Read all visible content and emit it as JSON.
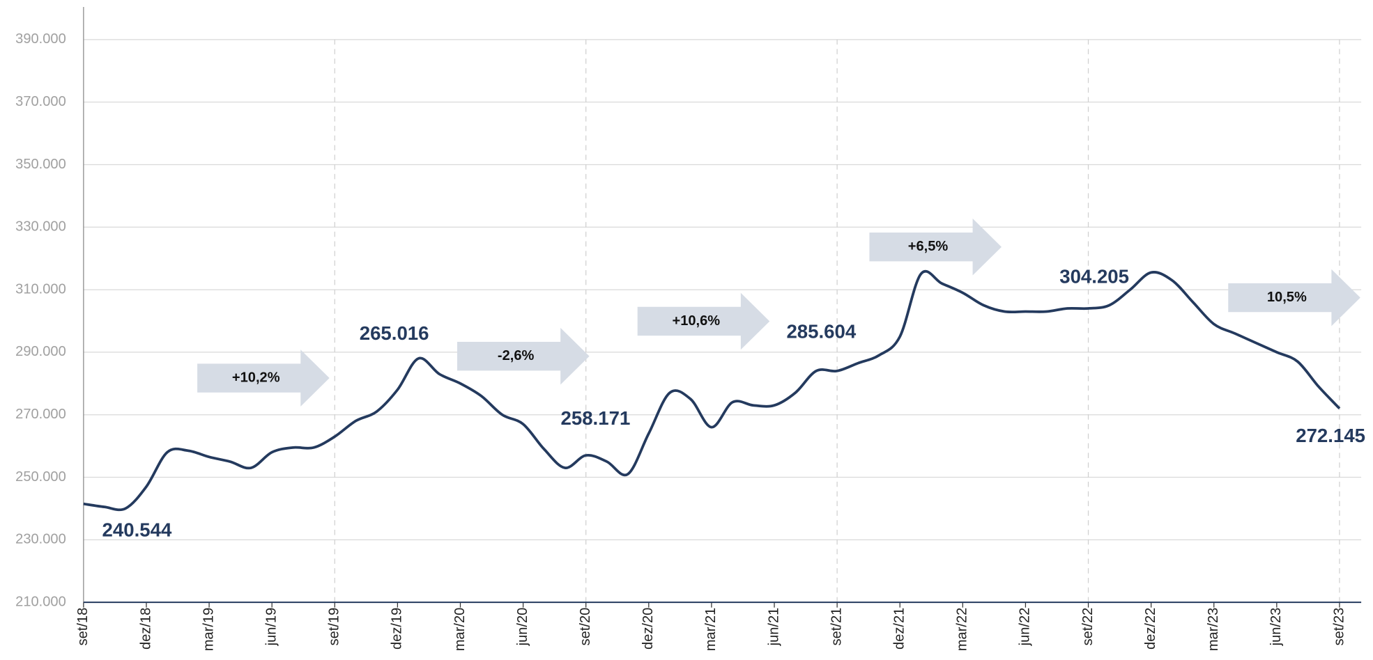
{
  "chart_data": {
    "type": "line",
    "categories": [
      "set/18",
      null,
      null,
      "dez/18",
      null,
      null,
      "mar/19",
      null,
      null,
      "jun/19",
      null,
      null,
      "set/19",
      null,
      null,
      "dez/19",
      null,
      null,
      "mar/20",
      null,
      null,
      "jun/20",
      null,
      null,
      "set/20",
      null,
      null,
      "dez/20",
      null,
      null,
      "mar/21",
      null,
      null,
      "jun/21",
      null,
      null,
      "set/21",
      null,
      null,
      "dez/21",
      null,
      null,
      "mar/22",
      null,
      null,
      "jun/22",
      null,
      null,
      "set/22",
      null,
      null,
      "dez/22",
      null,
      null,
      "mar/23",
      null,
      null,
      "jun/23",
      null,
      null,
      "set/23"
    ],
    "series": [
      {
        "color": "#243a5e",
        "values": [
          241500,
          240500,
          240000,
          247000,
          258000,
          258500,
          256500,
          255000,
          253000,
          258000,
          259500,
          259500,
          263000,
          268000,
          271000,
          278000,
          288000,
          283000,
          280000,
          276000,
          270000,
          267000,
          259000,
          253000,
          257000,
          255000,
          251000,
          264000,
          277000,
          275000,
          266000,
          274000,
          273000,
          273000,
          277000,
          284000,
          284000,
          286500,
          289000,
          295000,
          315000,
          312000,
          309000,
          305000,
          303000,
          303000,
          303000,
          304000,
          304000,
          305000,
          310000,
          315500,
          313000,
          306000,
          299000,
          296000,
          293000,
          290000,
          287000,
          279000,
          272000
        ]
      }
    ],
    "ylim": [
      210000,
      400000
    ],
    "yticks": [
      {
        "value": 210000,
        "label": "210.000"
      },
      {
        "value": 230000,
        "label": "230.000"
      },
      {
        "value": 250000,
        "label": "250.000"
      },
      {
        "value": 270000,
        "label": "270.000"
      },
      {
        "value": 290000,
        "label": "290.000"
      },
      {
        "value": 310000,
        "label": "310.000"
      },
      {
        "value": 330000,
        "label": "330.000"
      },
      {
        "value": 350000,
        "label": "350.000"
      },
      {
        "value": 370000,
        "label": "370.000"
      },
      {
        "value": 390000,
        "label": "390.000"
      }
    ],
    "grid": true,
    "annotations": [
      "240.544",
      "265.016",
      "258.171",
      "285.604",
      "304.205",
      "272.145"
    ],
    "arrows": [
      "+10,2%",
      "-2,6%",
      "+10,6%",
      "+6,5%",
      "10,5%"
    ]
  }
}
